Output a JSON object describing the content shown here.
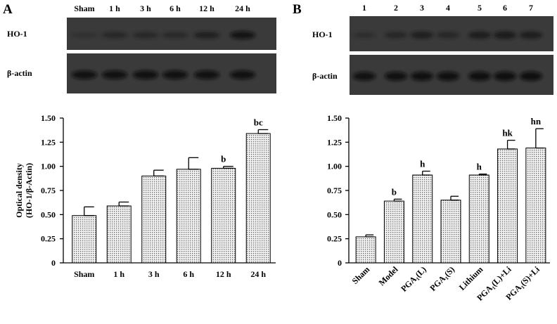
{
  "panels": {
    "A": {
      "letter": "A",
      "lanes": [
        "Sham",
        "1 h",
        "3 h",
        "6 h",
        "12 h",
        "24 h"
      ],
      "blots": [
        {
          "label": "HO-1",
          "intensity": [
            0.1,
            0.32,
            0.3,
            0.26,
            0.45,
            0.68
          ]
        },
        {
          "label": "β-actin",
          "intensity": [
            0.78,
            0.8,
            0.82,
            0.8,
            0.8,
            0.8
          ]
        }
      ]
    },
    "B": {
      "letter": "B",
      "lanes": [
        "1",
        "2",
        "3",
        "4",
        "5",
        "6",
        "7"
      ],
      "blots": [
        {
          "label": "HO-1",
          "intensity": [
            0.12,
            0.35,
            0.5,
            0.34,
            0.55,
            0.62,
            0.55
          ]
        },
        {
          "label": "β-actin",
          "intensity": [
            0.78,
            0.82,
            0.85,
            0.85,
            0.86,
            0.88,
            0.88
          ]
        }
      ]
    }
  },
  "chart_data": [
    {
      "type": "bar",
      "ylabel": "Optical density (HO-1/β-Actin)",
      "ylim": [
        0,
        1.5
      ],
      "yticks": [
        0,
        0.25,
        0.5,
        0.75,
        1.0,
        1.25,
        1.5
      ],
      "ytick_labels": [
        "0",
        "0.25",
        "0.50",
        "0.75",
        "1.00",
        "1.25",
        "1.50"
      ],
      "categories": [
        "Sham",
        "1 h",
        "3 h",
        "6 h",
        "12 h",
        "24 h"
      ],
      "values": [
        0.49,
        0.59,
        0.9,
        0.97,
        0.98,
        1.34
      ],
      "errors": [
        0.09,
        0.04,
        0.06,
        0.12,
        0.02,
        0.04
      ],
      "annotations": [
        "",
        "",
        "",
        "",
        "b",
        "bc"
      ],
      "rotated_labels": false
    },
    {
      "type": "bar",
      "ylabel": "",
      "ylim": [
        0,
        1.5
      ],
      "yticks": [
        0,
        0.25,
        0.5,
        0.75,
        1.0,
        1.25,
        1.5
      ],
      "ytick_labels": [
        "0",
        "0.25",
        "0.50",
        "0.75",
        "1.00",
        "1.25",
        "1.50"
      ],
      "categories": [
        "Sham",
        "Model",
        "PGA₁(L)",
        "PGA₁(S)",
        "Lithium",
        "PGA₁(L)+Li",
        "PGA₁(S)+Li"
      ],
      "values": [
        0.27,
        0.64,
        0.91,
        0.65,
        0.91,
        1.18,
        1.19
      ],
      "errors": [
        0.02,
        0.02,
        0.04,
        0.04,
        0.01,
        0.09,
        0.2
      ],
      "annotations": [
        "",
        "b",
        "h",
        "",
        "h",
        "hk",
        "hn"
      ],
      "rotated_labels": true
    }
  ]
}
